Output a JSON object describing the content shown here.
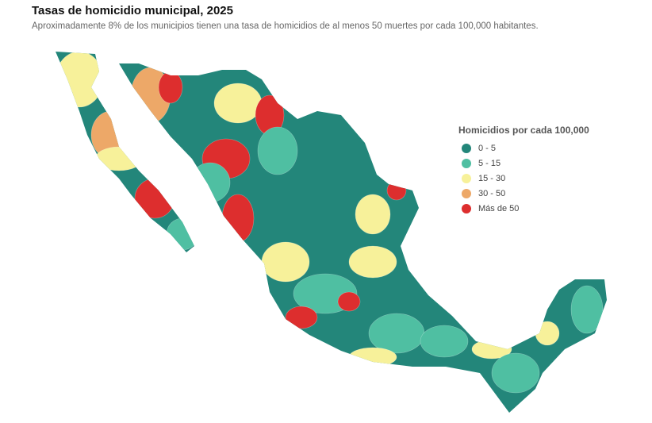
{
  "title": "Tasas de homicidio municipal, 2025",
  "subtitle": "Aproximadamente 8% de los municipios tienen una tasa de homicidios de al menos 50 muertes por cada 100,000 habitantes.",
  "legend": {
    "title": "Homicidios por cada 100,000",
    "items": [
      {
        "label": "0 - 5",
        "color": "#23867a"
      },
      {
        "label": "5 - 15",
        "color": "#4fbfa2"
      },
      {
        "label": "15 - 30",
        "color": "#f7f19a"
      },
      {
        "label": "30 - 50",
        "color": "#eda868"
      },
      {
        "label": "Más de 50",
        "color": "#dd2e2e"
      }
    ]
  }
}
